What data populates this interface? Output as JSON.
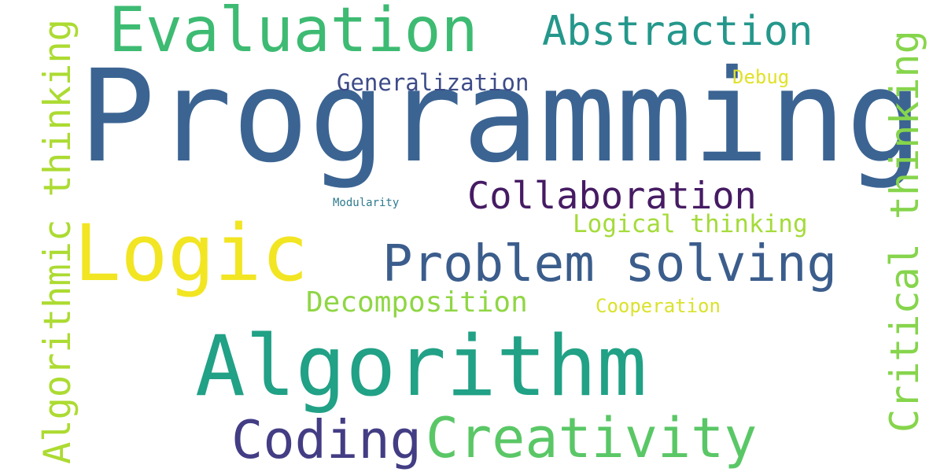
{
  "words": [
    {
      "key": "programming",
      "text": "Programming",
      "color": "#3B6492"
    },
    {
      "key": "logic",
      "text": "Logic",
      "color": "#F2E522"
    },
    {
      "key": "algorithm",
      "text": "Algorithm",
      "color": "#21A186"
    },
    {
      "key": "evaluation",
      "text": "Evaluation",
      "color": "#3DBB72"
    },
    {
      "key": "abstraction",
      "text": "Abstraction",
      "color": "#24978B"
    },
    {
      "key": "problem_solving",
      "text": "Problem solving",
      "color": "#3B5D8C"
    },
    {
      "key": "collaboration",
      "text": "Collaboration",
      "color": "#461B63"
    },
    {
      "key": "coding",
      "text": "Coding",
      "color": "#433D84"
    },
    {
      "key": "creativity",
      "text": "Creativity",
      "color": "#5AC766"
    },
    {
      "key": "algorithmic_thinking",
      "text": "Algorithmic thinking",
      "color": "#ACDB32"
    },
    {
      "key": "critical_thinking",
      "text": "Critical thinking",
      "color": "#86D54C"
    },
    {
      "key": "generalization",
      "text": "Generalization",
      "color": "#3D4B88"
    },
    {
      "key": "debug",
      "text": "Debug",
      "color": "#E1E129"
    },
    {
      "key": "logical_thinking",
      "text": "Logical thinking",
      "color": "#A4DB3A"
    },
    {
      "key": "decomposition",
      "text": "Decomposition",
      "color": "#8FD644"
    },
    {
      "key": "cooperation",
      "text": "Cooperation",
      "color": "#DAE22B"
    },
    {
      "key": "modularity",
      "text": "Modularity",
      "color": "#2F7B8E"
    }
  ]
}
